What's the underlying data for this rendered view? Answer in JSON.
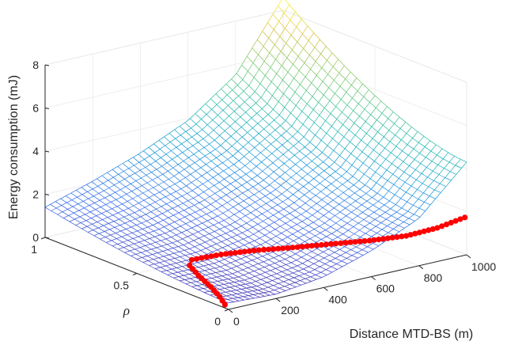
{
  "chart_data": {
    "type": "surface3d",
    "zlabel": "Energy consumption (mJ)",
    "xlabel": "Distance MTD-BS (m)",
    "ylabel": "ρ",
    "x_ticks": [
      "0",
      "200",
      "400",
      "600",
      "800",
      "1000"
    ],
    "y_ticks": [
      "0",
      "0.5",
      "1"
    ],
    "z_ticks": [
      "0",
      "2",
      "4",
      "6",
      "8"
    ],
    "xlim": [
      0,
      1000
    ],
    "ylim": [
      0,
      1
    ],
    "zlim": [
      0,
      8
    ],
    "grid": true,
    "colormap": "parula",
    "surface_samples": {
      "rho_0": [
        {
          "x": 0,
          "z": 0.3
        },
        {
          "x": 200,
          "z": 0.2
        },
        {
          "x": 400,
          "z": 0.5
        },
        {
          "x": 600,
          "z": 1.2
        },
        {
          "x": 800,
          "z": 2.2
        },
        {
          "x": 1000,
          "z": 4.3
        }
      ],
      "rho_1": [
        {
          "x": 0,
          "z": 1.4
        },
        {
          "x": 200,
          "z": 2.1
        },
        {
          "x": 400,
          "z": 2.9
        },
        {
          "x": 600,
          "z": 3.9
        },
        {
          "x": 800,
          "z": 5.5
        },
        {
          "x": 1000,
          "z": 8.6
        }
      ]
    },
    "optimal_curve": {
      "color": "#ff0000",
      "points": [
        {
          "x": 0,
          "rho": 0.02,
          "z": 0.15
        },
        {
          "x": 40,
          "rho": 0.1,
          "z": 0.15
        },
        {
          "x": 80,
          "rho": 0.2,
          "z": 0.17
        },
        {
          "x": 120,
          "rho": 0.32,
          "z": 0.2
        },
        {
          "x": 160,
          "rho": 0.42,
          "z": 0.23
        },
        {
          "x": 200,
          "rho": 0.46,
          "z": 0.26
        },
        {
          "x": 300,
          "rho": 0.43,
          "z": 0.35
        },
        {
          "x": 400,
          "rho": 0.38,
          "z": 0.45
        },
        {
          "x": 500,
          "rho": 0.3,
          "z": 0.6
        },
        {
          "x": 600,
          "rho": 0.22,
          "z": 0.78
        },
        {
          "x": 700,
          "rho": 0.14,
          "z": 0.95
        },
        {
          "x": 800,
          "rho": 0.07,
          "z": 1.15
        },
        {
          "x": 900,
          "rho": 0.03,
          "z": 1.4
        },
        {
          "x": 1000,
          "rho": 0.01,
          "z": 1.7
        }
      ]
    }
  }
}
